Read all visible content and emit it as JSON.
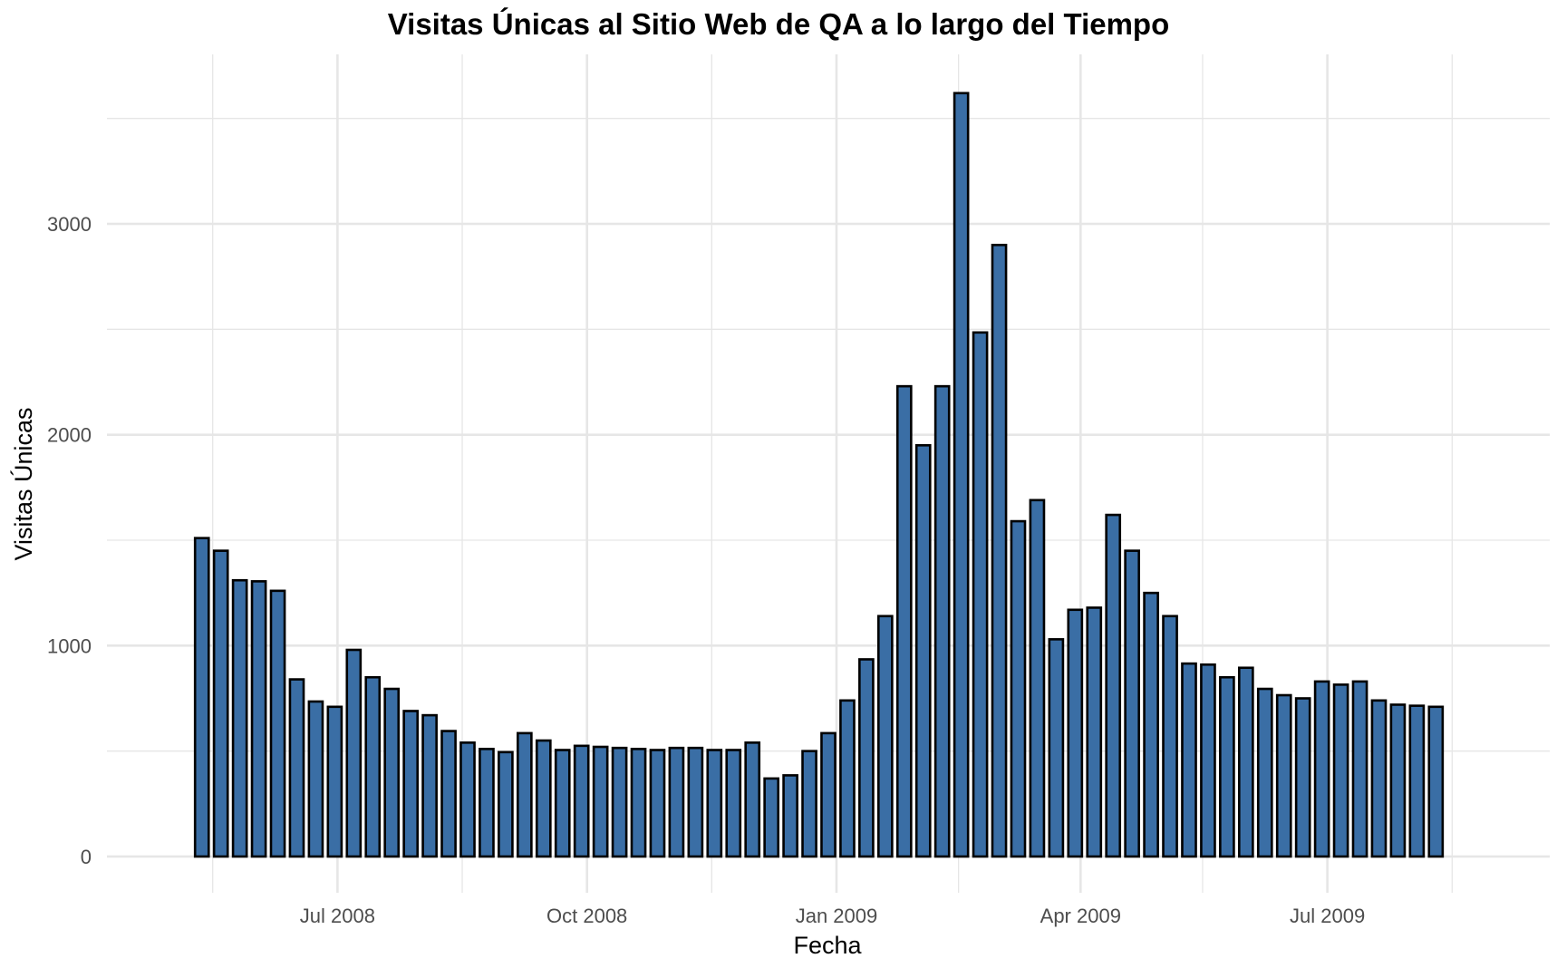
{
  "chart_data": {
    "type": "bar",
    "title": "Visitas Únicas al Sitio Web de QA a lo largo del Tiempo",
    "xlabel": "Fecha",
    "ylabel": "Visitas Únicas",
    "x_start": "2008-05-12",
    "x_step_days": 7,
    "x_range": [
      "2008-04-07",
      "2009-09-21"
    ],
    "x_ticks": [
      {
        "date": "2008-07-01",
        "label": "Jul 2008"
      },
      {
        "date": "2008-10-01",
        "label": "Oct 2008"
      },
      {
        "date": "2009-01-01",
        "label": "Jan 2009"
      },
      {
        "date": "2009-04-01",
        "label": "Apr 2009"
      },
      {
        "date": "2009-07-01",
        "label": "Jul 2009"
      }
    ],
    "x_minor_ticks": [
      "2008-05-16",
      "2008-08-16",
      "2008-11-16",
      "2009-02-15",
      "2009-05-16",
      "2009-08-16"
    ],
    "ylim": [
      0,
      3700
    ],
    "y_ticks": [
      0,
      1000,
      2000,
      3000
    ],
    "y_minor_ticks": [
      500,
      1500,
      2500,
      3500
    ],
    "grid": true,
    "colors": {
      "bar_fill": "#3a6ea5",
      "bar_stroke": "#000000",
      "grid": "#e6e6e6"
    },
    "values": [
      1510,
      1450,
      1310,
      1305,
      1260,
      840,
      735,
      710,
      980,
      850,
      795,
      690,
      670,
      595,
      540,
      510,
      495,
      585,
      550,
      505,
      525,
      520,
      515,
      510,
      505,
      515,
      515,
      505,
      505,
      540,
      370,
      385,
      500,
      585,
      740,
      935,
      1140,
      2230,
      1950,
      2230,
      3620,
      2485,
      2900,
      1590,
      1690,
      1030,
      1170,
      1180,
      1620,
      1450,
      1250,
      1140,
      915,
      910,
      850,
      895,
      795,
      765,
      750,
      830,
      815,
      830,
      740,
      720,
      715,
      710
    ]
  }
}
